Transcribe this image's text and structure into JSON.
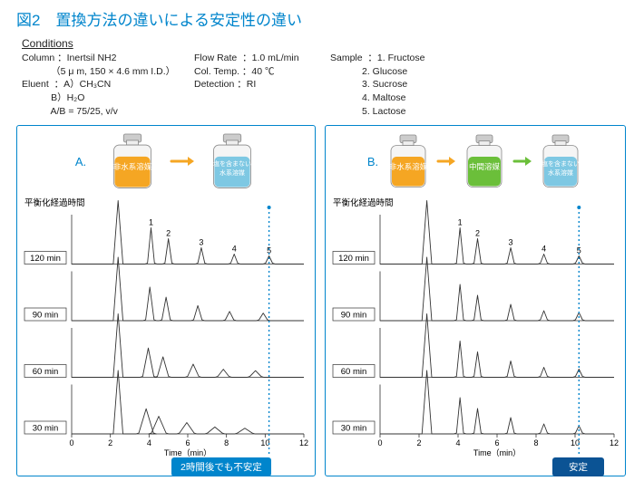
{
  "title": "図2　置換方法の違いによる安定性の違い",
  "conditions": {
    "heading": "Conditions",
    "col1": "Column ：Inertsil NH2\n           （5 μ m, 150 × 4.6 mm I.D.）\nEluent  ：A）CH₃CN\n           B）H₂O\n           A/B = 75/25, v/v",
    "col2": "Flow Rate  ：1.0 mL/min\nCol. Temp. ：40 ℃\nDetection ：RI",
    "col3": "Sample  ：1. Fructose\n            2. Glucose\n            3. Sucrose\n            4. Maltose\n            5. Lactose"
  },
  "shared": {
    "elapsed_header": "平衡化経過時間",
    "x_axis_label": "Time（min）",
    "x_ticks": [
      0,
      2,
      4,
      6,
      8,
      10,
      12
    ],
    "peak_numbers": [
      "1",
      "2",
      "3",
      "4",
      "5"
    ],
    "peak_x_min": [
      4.1,
      5.0,
      6.7,
      8.4,
      10.2
    ],
    "peak_heights": [
      40,
      28,
      18,
      11,
      9
    ],
    "big_peak_x_min": 2.4,
    "big_peak_height": 70,
    "row_times": [
      "120 min",
      "90 min",
      "60 min",
      "30 min"
    ],
    "chart_x_range": [
      0,
      12
    ]
  },
  "panelA": {
    "label": "A.",
    "bottles": [
      {
        "fill": "#f5a623",
        "text": "非水系溶媒",
        "text_fill": "#ffffff"
      },
      {
        "fill": "#7ec8e3",
        "text": "塩を含まない\n水系溶媒",
        "text_fill": "#ffffff"
      }
    ],
    "arrow_colors": [
      "#f5a623"
    ],
    "peak_shifts_min": [
      0,
      -0.12,
      -0.28,
      -0.5
    ],
    "peak_broadening": [
      1.0,
      1.2,
      1.6,
      2.1
    ],
    "callout": "2時間後でも不安定",
    "callout_bg": "#0085cc",
    "marker_x_min": 10.2,
    "marker_style": "dotted"
  },
  "panelB": {
    "label": "B.",
    "bottles": [
      {
        "fill": "#f5a623",
        "text": "非水系溶媒",
        "text_fill": "#ffffff"
      },
      {
        "fill": "#6bbf3a",
        "text": "中間溶媒",
        "text_fill": "#ffffff"
      },
      {
        "fill": "#7ec8e3",
        "text": "塩を含まない\n水系溶媒",
        "text_fill": "#ffffff"
      }
    ],
    "arrow_colors": [
      "#f5a623",
      "#6bbf3a"
    ],
    "peak_shifts_min": [
      0,
      0,
      0,
      0
    ],
    "peak_broadening": [
      1.0,
      1.0,
      1.0,
      1.0
    ],
    "callout": "安定",
    "callout_bg": "#0b5394",
    "marker_x_min": 10.2,
    "marker_style": "dotted"
  },
  "colors": {
    "accent": "#0085cc",
    "stroke": "#333333",
    "bottle_outline": "#888888",
    "bottle_cap": "#cccccc"
  }
}
